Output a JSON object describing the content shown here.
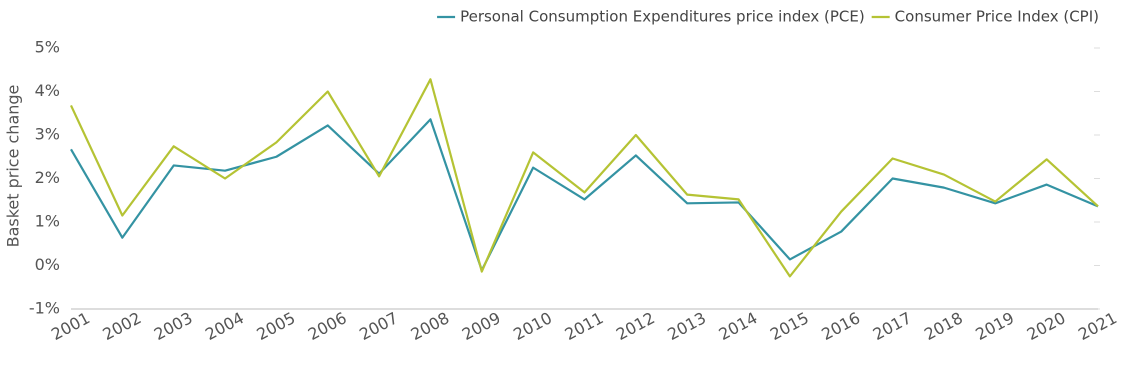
{
  "chart_data": {
    "type": "line",
    "y_label": "Basket price change",
    "categories": [
      "2001",
      "2002",
      "2003",
      "2004",
      "2005",
      "2006",
      "2007",
      "2008",
      "2009",
      "2010",
      "2011",
      "2012",
      "2013",
      "2014",
      "2015",
      "2016",
      "2017",
      "2018",
      "2019",
      "2020",
      "2021"
    ],
    "series": [
      {
        "name": "Personal Consumption Expenditures price index (PCE)",
        "color": "#3493a3",
        "values": [
          2.67,
          0.64,
          2.3,
          2.18,
          2.5,
          3.22,
          2.11,
          3.36,
          -0.11,
          2.25,
          1.52,
          2.53,
          1.43,
          1.45,
          0.14,
          0.78,
          2.0,
          1.79,
          1.43,
          1.86,
          1.36
        ]
      },
      {
        "name": "Consumer Price Index (CPI)",
        "color": "#b5c334",
        "values": [
          3.68,
          1.15,
          2.74,
          2.0,
          2.83,
          4.0,
          2.05,
          4.28,
          -0.14,
          2.6,
          1.68,
          3.0,
          1.63,
          1.52,
          -0.25,
          1.24,
          2.46,
          2.09,
          1.47,
          2.44,
          1.36
        ]
      }
    ],
    "ylim": [
      -1,
      5
    ],
    "yticks": [
      {
        "value": -1,
        "label": "-1%"
      },
      {
        "value": 0,
        "label": "0%"
      },
      {
        "value": 1,
        "label": "1%"
      },
      {
        "value": 2,
        "label": "2%"
      },
      {
        "value": 3,
        "label": "3%"
      },
      {
        "value": 4,
        "label": "4%"
      },
      {
        "value": 5,
        "label": "5%"
      }
    ],
    "legend": "top-right"
  }
}
